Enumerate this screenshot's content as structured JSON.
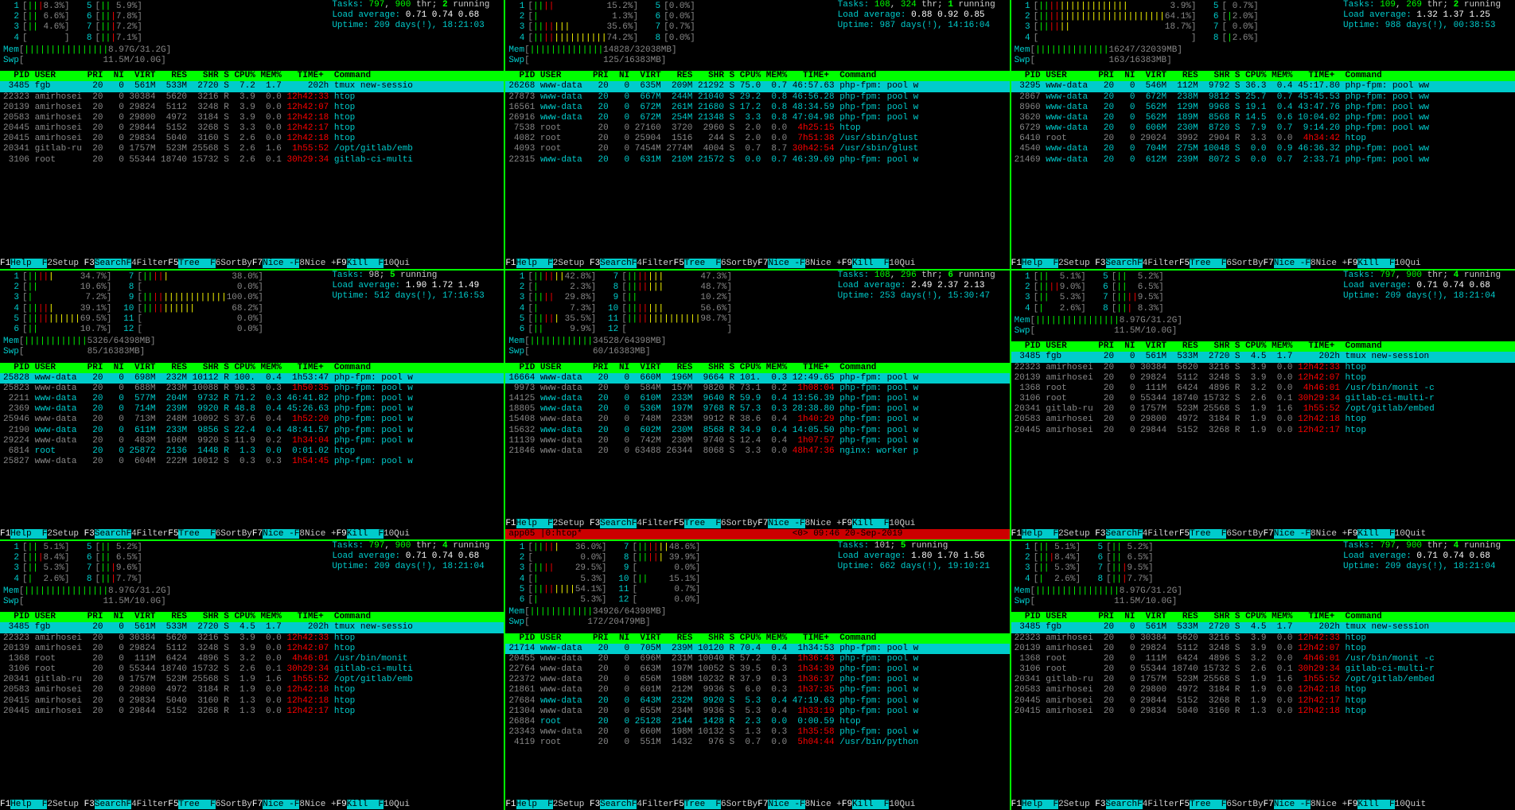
{
  "panes": [
    {
      "cpus": [
        {
          "n": "1",
          "bar": "|||",
          "pct": "8.3%"
        },
        {
          "n": "2",
          "bar": "||",
          "pct": "6.6%"
        },
        {
          "n": "3",
          "bar": "||",
          "pct": "4.6%"
        },
        {
          "n": "4",
          "bar": "",
          "pct": ""
        },
        {
          "n": "5",
          "bar": "||",
          "pct": "5.9%"
        },
        {
          "n": "6",
          "bar": "|||",
          "pct": "7.8%"
        },
        {
          "n": "7",
          "bar": "|||",
          "pct": "7.2%"
        },
        {
          "n": "8",
          "bar": "|||",
          "pct": "7.1%"
        }
      ],
      "mem": "Mem[||||||||||||||||8.97G/31.2G]",
      "swp": "Swp[               11.5M/10.0G]",
      "tasks": "Tasks: 797, 900 thr; 2 running",
      "load": "Load average: 0.71 0.74 0.68",
      "uptime": "Uptime: 209 days(!), 18:21:03",
      "header": "  PID USER      PRI  NI  VIRT   RES   SHR S CPU% MEM%   TIME+  Command",
      "hl": " 3485 fgb        20   0  561M  533M  2720 S  7.2  1.7     202h tmux new-sessio",
      "rows": [
        "22323 amirhosei  20   0 30384  5620  3216 R  3.9  0.0 12h42:33 htop",
        "20139 amirhosei  20   0 29824  5112  3248 R  3.9  0.0 12h42:07 htop",
        "20583 amirhosei  20   0 29800  4972  3184 S  3.9  0.0 12h42:18 htop",
        "20445 amirhosei  20   0 29844  5152  3268 S  3.3  0.0 12h42:17 htop",
        "20415 amirhosei  20   0 29834  5040  3160 S  2.6  0.0 12h42:18 htop",
        "20341 gitlab-ru  20   0 1757M  523M 25568 S  2.6  1.6  1h55:52 /opt/gitlab/emb",
        " 3106 root       20   0 55344 18740 15732 S  2.6  0.1 30h29:34 gitlab-ci-multi"
      ],
      "fkeys": "F1Help  F2Setup F3SearchF4FilterF5Tree  F6SortByF7Nice -F8Nice +F9Kill  F10Qui"
    },
    {
      "cpus": [
        {
          "n": "1",
          "bar": "||||",
          "pct": "15.2%"
        },
        {
          "n": "2",
          "bar": "|",
          "pct": "1.3%"
        },
        {
          "n": "3",
          "bar": "|||||||",
          "pct": "35.6%"
        },
        {
          "n": "4",
          "bar": "||||||||||||||",
          "pct": "74.2%"
        },
        {
          "n": "5",
          "bar": "",
          "pct": "0.0%"
        },
        {
          "n": "6",
          "bar": "",
          "pct": "0.0%"
        },
        {
          "n": "7",
          "bar": "",
          "pct": "0.7%"
        },
        {
          "n": "8",
          "bar": "",
          "pct": "0.0%"
        }
      ],
      "mem": "Mem[||||||||||||||14828/32038MB]",
      "swp": "Swp[              125/16383MB]",
      "tasks": "Tasks: 108, 324 thr; 1 running",
      "load": "Load average: 0.88 0.92 0.85",
      "uptime": "Uptime: 987 days(!), 14:16:04",
      "header": "  PID USER      PRI  NI  VIRT   RES   SHR S CPU% MEM%   TIME+  Command",
      "hl": "26268 www-data   20   0  635M  209M 21292 S 75.0  0.7 46:57.63 php-fpm: pool w",
      "rows": [
        "27873 www-data   20   0  667M  244M 21040 S 29.2  0.8 46:56.28 php-fpm: pool w",
        "16561 www-data   20   0  672M  261M 21680 S 17.2  0.8 48:34.59 php-fpm: pool w",
        "26916 www-data   20   0  672M  254M 21348 S  3.3  0.8 47:04.98 php-fpm: pool w",
        " 7538 root       20   0 27160  3720  2960 S  2.0  0.0  4h25:15 htop",
        " 4082 root       20   0 25904  1516   244 S  2.0  0.0  7h51:38 /usr/sbin/glust",
        " 4093 root       20   0 7454M 2774M  4004 S  0.7  8.7 30h42:54 /usr/sbin/glust",
        "22315 www-data   20   0  631M  210M 21572 S  0.0  0.7 46:39.69 php-fpm: pool w"
      ],
      "fkeys": "F1Help  F2Setup F3SearchF4FilterF5Tree  F6SortByF7Nice -F8Nice +F9Kill  F10Qui"
    },
    {
      "cpus": [
        {
          "n": "1",
          "bar": "|||||||||||||||||",
          "pct": "3.9%"
        },
        {
          "n": "2",
          "bar": "||||||||||||||||||||||||",
          "pct": "64.1%"
        },
        {
          "n": "3",
          "bar": "||||||",
          "pct": "18.7%"
        },
        {
          "n": "4",
          "bar": "",
          "pct": ""
        },
        {
          "n": "5",
          "bar": "",
          "pct": "0.7%"
        },
        {
          "n": "6",
          "bar": "|",
          "pct": "2.0%"
        },
        {
          "n": "7",
          "bar": "",
          "pct": "0.0%"
        },
        {
          "n": "8",
          "bar": "|",
          "pct": "2.6%"
        }
      ],
      "mem": "Mem[||||||||||||||16247/32039MB]",
      "swp": "Swp[              163/16383MB]",
      "tasks": "Tasks: 109, 269 thr; 2 running",
      "load": "Load average: 1.32 1.37 1.25",
      "uptime": "Uptime: 988 days(!), 00:38:53",
      "header": "  PID USER      PRI  NI  VIRT   RES   SHR S CPU% MEM%   TIME+  Command",
      "hl": " 3295 www-data   20   0  546M  112M  9792 S 36.3  0.4 45:17.80 php-fpm: pool ww",
      "rows": [
        " 2867 www-data   20   0  672M  238M  9812 S 25.7  0.7 45:45.53 php-fpm: pool ww",
        " 8960 www-data   20   0  562M  129M  9968 S 19.1  0.4 43:47.76 php-fpm: pool ww",
        " 3620 www-data   20   0  562M  189M  8568 R 14.5  0.6 10:04.02 php-fpm: pool ww",
        " 6729 www-data   20   0  606M  230M  8720 S  7.9  0.7  9:14.20 php-fpm: pool ww",
        " 6410 root       20   0 29024  3992  2904 R  3.3  0.0  4h34:42 htop",
        " 4540 www-data   20   0  704M  275M 10048 S  0.0  0.9 46:36.32 php-fpm: pool ww",
        "21469 www-data   20   0  612M  239M  8072 S  0.0  0.7  2:33.71 php-fpm: pool ww"
      ],
      "fkeys": "F1Help  F2Setup F3SearchF4FilterF5Tree  F6SortByF7Nice -F8Nice +F9Kill  F10Qui"
    },
    {
      "cpus": [
        {
          "n": "1",
          "bar": "|||||",
          "pct": "34.7%"
        },
        {
          "n": "2",
          "bar": "||",
          "pct": "10.6%"
        },
        {
          "n": "3",
          "bar": "|",
          "pct": "7.2%"
        },
        {
          "n": "4",
          "bar": "|||||",
          "pct": "39.1%"
        },
        {
          "n": "5",
          "bar": "||||||||||",
          "pct": "69.5%"
        },
        {
          "n": "6",
          "bar": "||",
          "pct": "10.7%"
        },
        {
          "n": "7",
          "bar": "|||||",
          "pct": "38.0%"
        },
        {
          "n": "8",
          "bar": "",
          "pct": "0.0%"
        },
        {
          "n": "9",
          "bar": "||||||||||||||||",
          "pct": "100.0%"
        },
        {
          "n": "10",
          "bar": "||||||||||",
          "pct": "68.2%"
        },
        {
          "n": "11",
          "bar": "",
          "pct": "0.0%"
        },
        {
          "n": "12",
          "bar": "",
          "pct": "0.0%"
        }
      ],
      "mem": "Mem[||||||||||||5326/64398MB]",
      "swp": "Swp[            85/16383MB]",
      "tasks": "Tasks: 98; 5 running",
      "load": "Load average: 1.90 1.72 1.49",
      "uptime": "Uptime: 512 days(!), 17:16:53",
      "header": "  PID USER      PRI  NI  VIRT   RES   SHR S CPU% MEM%   TIME+  Command",
      "hl": "25828 www-data   20   0  698M  232M 10112 R 100.  0.4  1h53:47 php-fpm: pool w",
      "rows": [
        "25823 www-data   20   0  688M  233M 10088 R 90.3  0.3  1h50:35 php-fpm: pool w",
        " 2211 www-data   20   0  577M  204M  9732 R 71.2  0.3 46:41.82 php-fpm: pool w",
        " 2369 www-data   20   0  714M  239M  9920 R 48.8  0.4 45:26.63 php-fpm: pool w",
        "25946 www-data   20   0  713M  248M 10092 S 37.6  0.4  1h52:20 php-fpm: pool w",
        " 2190 www-data   20   0  611M  233M  9856 S 22.4  0.4 48:41.57 php-fpm: pool w",
        "29224 www-data   20   0  483M  106M  9920 S 11.9  0.2  1h34:04 php-fpm: pool w",
        " 6814 root       20   0 25872  2136  1448 R  1.3  0.0  0:01.02 htop",
        "25827 www-data   20   0  604M  222M 10012 S  0.3  0.3  1h54:45 php-fpm: pool w"
      ],
      "fkeys": "F1Help  F2Setup F3SearchF4FilterF5Tree  F6SortByF7Nice -F8Nice +F9Kill  F10Qui"
    },
    {
      "cpus": [
        {
          "n": "1",
          "bar": "||||||",
          "pct": "42.8%"
        },
        {
          "n": "2",
          "bar": "|",
          "pct": "2.3%"
        },
        {
          "n": "3",
          "bar": "||||",
          "pct": "29.8%"
        },
        {
          "n": "4",
          "bar": "|",
          "pct": "7.3%"
        },
        {
          "n": "5",
          "bar": "|||||",
          "pct": "35.5%"
        },
        {
          "n": "6",
          "bar": "||",
          "pct": "9.9%"
        },
        {
          "n": "7",
          "bar": "|||||||",
          "pct": "47.3%"
        },
        {
          "n": "8",
          "bar": "|||||||",
          "pct": "48.7%"
        },
        {
          "n": "9",
          "bar": "||",
          "pct": "10.2%"
        },
        {
          "n": "10",
          "bar": "|||||||",
          "pct": "56.6%"
        },
        {
          "n": "11",
          "bar": "||||||||||||||",
          "pct": "98.7%"
        },
        {
          "n": "12",
          "bar": "",
          "pct": ""
        }
      ],
      "mem": "Mem[||||||||||||34528/64398MB]",
      "swp": "Swp[            60/16383MB]",
      "tasks": "Tasks: 108, 296 thr; 6 running",
      "load": "Load average: 2.49 2.37 2.13",
      "uptime": "Uptime: 253 days(!), 15:30:47",
      "header": "  PID USER      PRI  NI  VIRT   RES   SHR S CPU% MEM%   TIME+  Command",
      "hl": "16664 www-data   20   0  660M  196M  9664 R 101.  0.3 12:49.65 php-fpm: pool w",
      "rows": [
        " 9973 www-data   20   0  584M  157M  9820 R 73.1  0.2  1h08:04 php-fpm: pool w",
        "14125 www-data   20   0  610M  233M  9640 R 59.9  0.4 13:56.39 php-fpm: pool w",
        "18805 www-data   20   0  536M  197M  9768 R 57.3  0.3 28:38.80 php-fpm: pool w",
        "15408 www-data   20   0  748M  233M  9912 R 38.6  0.4  1h40:29 php-fpm: pool w",
        "15632 www-data   20   0  602M  230M  8568 R 34.9  0.4 14:05.50 php-fpm: pool w",
        "11139 www-data   20   0  742M  230M  9740 S 12.4  0.4  1h07:57 php-fpm: pool w",
        "21846 www-data   20   0 63488 26344  8068 S  3.3  0.0 48h47:36 nginx: worker p"
      ],
      "fkeys": "F1Help  F2Setup F3SearchF4FilterF5Tree  F6SortByF7Nice -F8Nice +F9Kill  F10Qui",
      "tmux": "app05 |0:htop*                                        <0> 09:46 20-Sep-2019"
    },
    {
      "cpus": [
        {
          "n": "1",
          "bar": "||",
          "pct": "5.1%"
        },
        {
          "n": "2",
          "bar": "||||",
          "pct": "9.0%"
        },
        {
          "n": "3",
          "bar": "||",
          "pct": "5.3%"
        },
        {
          "n": "4",
          "bar": "|",
          "pct": "2.6%"
        },
        {
          "n": "5",
          "bar": "||",
          "pct": "5.2%"
        },
        {
          "n": "6",
          "bar": "||",
          "pct": "6.5%"
        },
        {
          "n": "7",
          "bar": "||||",
          "pct": "9.5%"
        },
        {
          "n": "8",
          "bar": "|||",
          "pct": "8.3%"
        }
      ],
      "mem": "Mem[||||||||||||||||8.97G/31.2G]",
      "swp": "Swp[               11.5M/10.0G]",
      "tasks": "Tasks: 797, 900 thr; 4 running",
      "load": "Load average: 0.71 0.74 0.68",
      "uptime": "Uptime: 209 days(!), 18:21:04",
      "header": "  PID USER      PRI  NI  VIRT   RES   SHR S CPU% MEM%   TIME+  Command",
      "hl": " 3485 fgb        20   0  561M  533M  2720 S  4.5  1.7     202h tmux new-session",
      "rows": [
        "22323 amirhosei  20   0 30384  5620  3216 S  3.9  0.0 12h42:33 htop",
        "20139 amirhosei  20   0 29824  5112  3248 S  3.9  0.0 12h42:07 htop",
        " 1368 root       20   0  111M  6424  4896 R  3.2  0.0  4h46:01 /usr/bin/monit -c",
        " 3106 root       20   0 55344 18740 15732 S  2.6  0.1 30h29:34 gitlab-ci-multi-r",
        "20341 gitlab-ru  20   0 1757M  523M 25568 S  1.9  1.6  1h55:52 /opt/gitlab/embed",
        "20583 amirhosei  20   0 29800  4972  3184 R  1.9  0.0 12h42:18 htop",
        "20445 amirhosei  20   0 29844  5152  3268 R  1.9  0.0 12h42:17 htop"
      ],
      "fkeys": "F1Help  F2Setup F3SearchF4FilterF5Tree  F6SortByF7Nice -F8Nice +F9Kill  F10Quit"
    },
    {
      "cpus": [
        {
          "n": "1",
          "bar": "||",
          "pct": "5.1%"
        },
        {
          "n": "2",
          "bar": "|||",
          "pct": "8.4%"
        },
        {
          "n": "3",
          "bar": "||",
          "pct": "5.3%"
        },
        {
          "n": "4",
          "bar": "|",
          "pct": "2.6%"
        },
        {
          "n": "5",
          "bar": "||",
          "pct": "5.2%"
        },
        {
          "n": "6",
          "bar": "||",
          "pct": "6.5%"
        },
        {
          "n": "7",
          "bar": "|||",
          "pct": "9.6%"
        },
        {
          "n": "8",
          "bar": "|||",
          "pct": "7.7%"
        }
      ],
      "mem": "Mem[||||||||||||||||8.97G/31.2G]",
      "swp": "Swp[               11.5M/10.0G]",
      "tasks": "Tasks: 797, 900 thr; 4 running",
      "load": "Load average: 0.71 0.74 0.68",
      "uptime": "Uptime: 209 days(!), 18:21:04",
      "header": "  PID USER      PRI  NI  VIRT   RES   SHR S CPU% MEM%   TIME+  Command",
      "hl": " 3485 fgb        20   0  561M  533M  2720 S  4.5  1.7     202h tmux new-sessio",
      "rows": [
        "22323 amirhosei  20   0 30384  5620  3216 S  3.9  0.0 12h42:33 htop",
        "20139 amirhosei  20   0 29824  5112  3248 S  3.9  0.0 12h42:07 htop",
        " 1368 root       20   0  111M  6424  4896 S  3.2  0.0  4h46:01 /usr/bin/monit",
        " 3106 root       20   0 55344 18740 15732 S  2.6  0.1 30h29:34 gitlab-ci-multi",
        "20341 gitlab-ru  20   0 1757M  523M 25568 S  1.9  1.6  1h55:52 /opt/gitlab/emb",
        "20583 amirhosei  20   0 29800  4972  3184 R  1.9  0.0 12h42:18 htop",
        "20415 amirhosei  20   0 29834  5040  3160 R  1.3  0.0 12h42:18 htop",
        "20445 amirhosei  20   0 29844  5152  3268 R  1.3  0.0 12h42:17 htop"
      ],
      "fkeys": "F1Help  F2Setup F3SearchF4FilterF5Tree  F6SortByF7Nice -F8Nice +F9Kill  F10Qui"
    },
    {
      "cpus": [
        {
          "n": "1",
          "bar": "|||||",
          "pct": "36.0%"
        },
        {
          "n": "2",
          "bar": "",
          "pct": "0.0%"
        },
        {
          "n": "3",
          "bar": "||||",
          "pct": "29.5%"
        },
        {
          "n": "4",
          "bar": "|",
          "pct": "5.3%"
        },
        {
          "n": "5",
          "bar": "||||||||",
          "pct": "54.1%"
        },
        {
          "n": "6",
          "bar": "|",
          "pct": "5.3%"
        },
        {
          "n": "7",
          "bar": "||||||",
          "pct": "48.6%"
        },
        {
          "n": "8",
          "bar": "|||||",
          "pct": "39.9%"
        },
        {
          "n": "9",
          "bar": "",
          "pct": "0.0%"
        },
        {
          "n": "10",
          "bar": "||",
          "pct": "15.1%"
        },
        {
          "n": "11",
          "bar": "",
          "pct": "0.7%"
        },
        {
          "n": "12",
          "bar": "",
          "pct": "0.0%"
        }
      ],
      "mem": "Mem[||||||||||||34926/64398MB]",
      "swp": "Swp[           172/20479MB]",
      "tasks": "Tasks: 101; 5 running",
      "load": "Load average: 1.80 1.70 1.56",
      "uptime": "Uptime: 662 days(!), 19:10:21",
      "header": "  PID USER      PRI  NI  VIRT   RES   SHR S CPU% MEM%   TIME+  Command",
      "hl": "21714 www-data   20   0  705M  239M 10120 R 70.4  0.4  1h34:53 php-fpm: pool w",
      "rows": [
        "20455 www-data   20   0  696M  231M 10040 R 57.2  0.4  1h36:43 php-fpm: pool w",
        "22764 www-data   20   0  663M  197M 10052 S 39.5  0.3  1h34:39 php-fpm: pool w",
        "22372 www-data   20   0  656M  198M 10232 R 37.9  0.3  1h36:37 php-fpm: pool w",
        "21861 www-data   20   0  601M  212M  9936 S  6.0  0.3  1h37:35 php-fpm: pool w",
        "27684 www-data   20   0  643M  232M  9920 S  5.3  0.4 47:19.63 php-fpm: pool w",
        "21304 www-data   20   0  655M  234M  9936 S  5.3  0.4  1h33:19 php-fpm: pool w",
        "26884 root       20   0 25128  2144  1428 R  2.3  0.0  0:00.59 htop",
        "23343 www-data   20   0  660M  198M 10132 S  1.3  0.3  1h35:58 php-fpm: pool w",
        " 4119 root       20   0  551M  1432   976 S  0.7  0.0  5h04:44 /usr/bin/python"
      ],
      "fkeys": "F1Help  F2Setup F3SearchF4FilterF5Tree  F6SortByF7Nice -F8Nice +F9Kill  F10Qui"
    },
    {
      "cpus": [
        {
          "n": "1",
          "bar": "||",
          "pct": "5.1%"
        },
        {
          "n": "2",
          "bar": "|||",
          "pct": "8.4%"
        },
        {
          "n": "3",
          "bar": "||",
          "pct": "5.3%"
        },
        {
          "n": "4",
          "bar": "|",
          "pct": "2.6%"
        },
        {
          "n": "5",
          "bar": "||",
          "pct": "5.2%"
        },
        {
          "n": "6",
          "bar": "||",
          "pct": "6.5%"
        },
        {
          "n": "7",
          "bar": "|||",
          "pct": "9.5%"
        },
        {
          "n": "8",
          "bar": "|||",
          "pct": "7.7%"
        }
      ],
      "mem": "Mem[||||||||||||||||8.97G/31.2G]",
      "swp": "Swp[               11.5M/10.0G]",
      "tasks": "Tasks: 797, 900 thr; 4 running",
      "load": "Load average: 0.71 0.74 0.68",
      "uptime": "Uptime: 209 days(!), 18:21:04",
      "header": "  PID USER      PRI  NI  VIRT   RES   SHR S CPU% MEM%   TIME+  Command",
      "hl": " 3485 fgb        20   0  561M  533M  2720 S  4.5  1.7     202h tmux new-session",
      "rows": [
        "22323 amirhosei  20   0 30384  5620  3216 S  3.9  0.0 12h42:33 htop",
        "20139 amirhosei  20   0 29824  5112  3248 S  3.9  0.0 12h42:07 htop",
        " 1368 root       20   0  111M  6424  4896 S  3.2  0.0  4h46:01 /usr/bin/monit -c",
        " 3106 root       20   0 55344 18740 15732 S  2.6  0.1 30h29:34 gitlab-ci-multi-r",
        "20341 gitlab-ru  20   0 1757M  523M 25568 S  1.9  1.6  1h55:52 /opt/gitlab/embed",
        "20583 amirhosei  20   0 29800  4972  3184 R  1.9  0.0 12h42:18 htop",
        "20445 amirhosei  20   0 29844  5152  3268 R  1.9  0.0 12h42:17 htop",
        "20415 amirhosei  20   0 29834  5040  3160 R  1.3  0.0 12h42:18 htop"
      ],
      "fkeys": "F1Help  F2Setup F3SearchF4FilterF5Tree  F6SortByF7Nice -F8Nice +F9Kill  F10Quit"
    }
  ],
  "colors": {
    "bg": "#000000",
    "fg": "#cccccc",
    "green": "#00ff00",
    "cyan": "#00cccc",
    "red": "#ff0000",
    "yellow": "#ffff00",
    "hl_bg": "#00cccc",
    "header_bg": "#00ff00"
  }
}
